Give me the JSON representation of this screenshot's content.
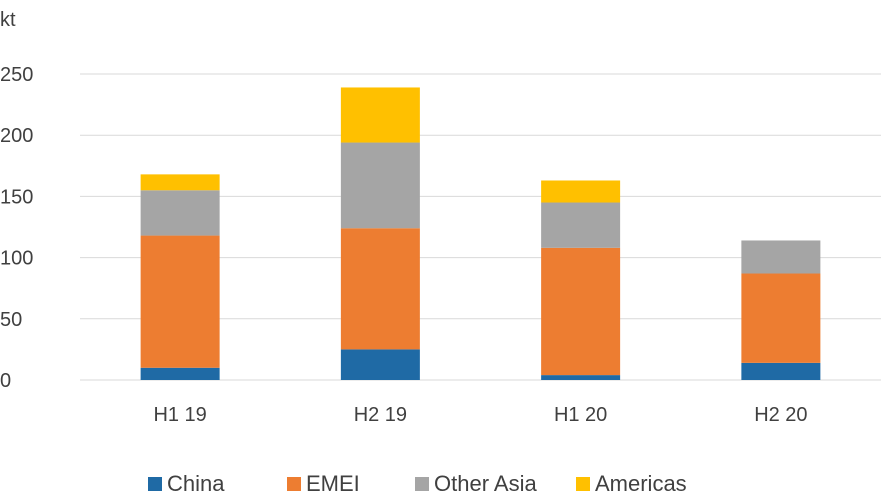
{
  "chart_data": {
    "type": "bar",
    "stacked": true,
    "unit_label": "kt",
    "categories": [
      "H1 19",
      "H2 19",
      "H1 20",
      "H2 20"
    ],
    "series": [
      {
        "name": "China",
        "color": "#1f6aa5",
        "values": [
          10,
          25,
          4,
          14
        ]
      },
      {
        "name": "EMEI",
        "color": "#ed7d31",
        "values": [
          108,
          99,
          104,
          73
        ]
      },
      {
        "name": "Other Asia",
        "color": "#a5a5a5",
        "values": [
          37,
          70,
          37,
          27
        ]
      },
      {
        "name": "Americas",
        "color": "#ffc000",
        "values": [
          13,
          45,
          18,
          0
        ]
      }
    ],
    "ylim": [
      0,
      250
    ],
    "yticks": [
      0,
      50,
      100,
      150,
      200,
      250
    ],
    "grid": true,
    "legend": "bottom"
  }
}
